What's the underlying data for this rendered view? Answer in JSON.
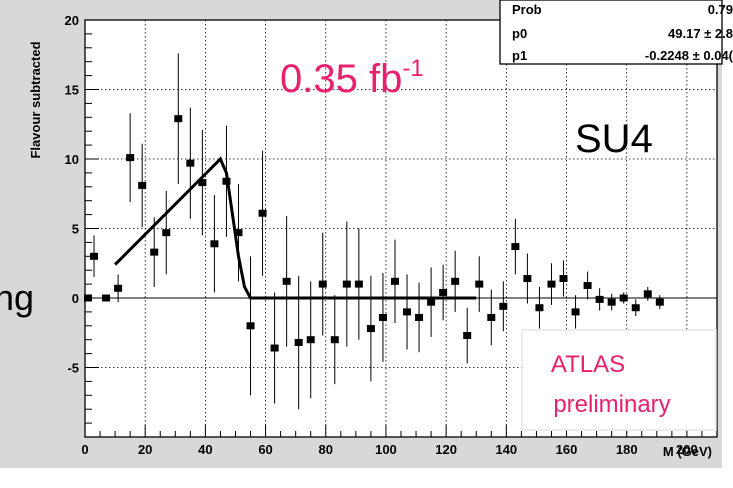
{
  "chart_data": {
    "type": "scatter",
    "xlabel": "M (GeV)",
    "ylabel": "Flavour subtracted",
    "xlim": [
      0,
      210
    ],
    "ylim": [
      -10,
      20
    ],
    "xticks": [
      "0",
      "20",
      "40",
      "60",
      "80",
      "100",
      "120",
      "140",
      "160",
      "180",
      "200"
    ],
    "yticks": [
      "-5",
      "0",
      "5",
      "10",
      "15",
      "20"
    ],
    "grid": true,
    "points": [
      {
        "x": 1,
        "y": 0.0,
        "err": 0.0
      },
      {
        "x": 3,
        "y": 3.0,
        "err": 1.5
      },
      {
        "x": 7,
        "y": 0.0,
        "err": 0.0
      },
      {
        "x": 11,
        "y": 0.7,
        "err": 1.0
      },
      {
        "x": 15,
        "y": 10.1,
        "err": 3.2
      },
      {
        "x": 19,
        "y": 8.1,
        "err": 3.0
      },
      {
        "x": 23,
        "y": 3.3,
        "err": 2.5
      },
      {
        "x": 27,
        "y": 4.7,
        "err": 3.0
      },
      {
        "x": 31,
        "y": 12.9,
        "err": 4.7
      },
      {
        "x": 35,
        "y": 9.7,
        "err": 4.0
      },
      {
        "x": 39,
        "y": 8.3,
        "err": 3.8
      },
      {
        "x": 43,
        "y": 3.9,
        "err": 3.5
      },
      {
        "x": 47,
        "y": 8.4,
        "err": 4.0
      },
      {
        "x": 51,
        "y": 4.7,
        "err": 3.5
      },
      {
        "x": 55,
        "y": -2.0,
        "err": 5.0
      },
      {
        "x": 59,
        "y": 6.1,
        "err": 4.5
      },
      {
        "x": 63,
        "y": -3.6,
        "err": 4.0
      },
      {
        "x": 67,
        "y": 1.2,
        "err": 4.7
      },
      {
        "x": 71,
        "y": -3.2,
        "err": 4.8
      },
      {
        "x": 75,
        "y": -3.0,
        "err": 4.2
      },
      {
        "x": 79,
        "y": 1.0,
        "err": 3.7
      },
      {
        "x": 83,
        "y": -3.0,
        "err": 3.2
      },
      {
        "x": 87,
        "y": 1.0,
        "err": 4.5
      },
      {
        "x": 91,
        "y": 1.0,
        "err": 4.0
      },
      {
        "x": 95,
        "y": -2.2,
        "err": 3.8
      },
      {
        "x": 99,
        "y": -1.4,
        "err": 3.2
      },
      {
        "x": 103,
        "y": 1.2,
        "err": 3.0
      },
      {
        "x": 107,
        "y": -1.0,
        "err": 2.7
      },
      {
        "x": 111,
        "y": -1.4,
        "err": 2.5
      },
      {
        "x": 115,
        "y": -0.3,
        "err": 2.5
      },
      {
        "x": 119,
        "y": 0.4,
        "err": 2.0
      },
      {
        "x": 123,
        "y": 1.2,
        "err": 2.2
      },
      {
        "x": 127,
        "y": -2.7,
        "err": 2.0
      },
      {
        "x": 131,
        "y": 1.0,
        "err": 2.0
      },
      {
        "x": 135,
        "y": -1.4,
        "err": 2.0
      },
      {
        "x": 139,
        "y": -0.6,
        "err": 1.8
      },
      {
        "x": 143,
        "y": 3.7,
        "err": 2.0
      },
      {
        "x": 147,
        "y": 1.4,
        "err": 1.8
      },
      {
        "x": 151,
        "y": -0.7,
        "err": 1.5
      },
      {
        "x": 155,
        "y": 1.0,
        "err": 1.5
      },
      {
        "x": 159,
        "y": 1.4,
        "err": 1.3
      },
      {
        "x": 163,
        "y": -1.0,
        "err": 1.2
      },
      {
        "x": 167,
        "y": 0.9,
        "err": 1.0
      },
      {
        "x": 171,
        "y": -0.1,
        "err": 0.8
      },
      {
        "x": 175,
        "y": -0.3,
        "err": 0.6
      },
      {
        "x": 179,
        "y": 0.0,
        "err": 0.4
      },
      {
        "x": 183,
        "y": -0.7,
        "err": 0.6
      },
      {
        "x": 187,
        "y": 0.3,
        "err": 0.5
      },
      {
        "x": 191,
        "y": -0.3,
        "err": 0.5
      }
    ],
    "fit_curve": [
      [
        10,
        2.4
      ],
      [
        45,
        10.0
      ],
      [
        47,
        9.0
      ],
      [
        49,
        6.0
      ],
      [
        51,
        3.0
      ],
      [
        53,
        0.8
      ],
      [
        55,
        0.0
      ],
      [
        130,
        0.0
      ]
    ],
    "stats_box": [
      {
        "label": "Prob",
        "value": "0.79"
      },
      {
        "label": "p0",
        "value": "49.17 ± 2.8"
      },
      {
        "label": "p1",
        "value": "-0.2248 ± 0.04("
      }
    ],
    "annotations": {
      "luminosity": "0.35 fb",
      "luminosity_sup": "-1",
      "sample": "SU4",
      "atlas_line1": "ATLAS",
      "atlas_line2": "preliminary",
      "clipped_left_text": "ng"
    },
    "colors": {
      "luminosity": "#e8206e",
      "atlas": "#e8206e",
      "marker": "#000000",
      "curve": "#000000"
    }
  }
}
